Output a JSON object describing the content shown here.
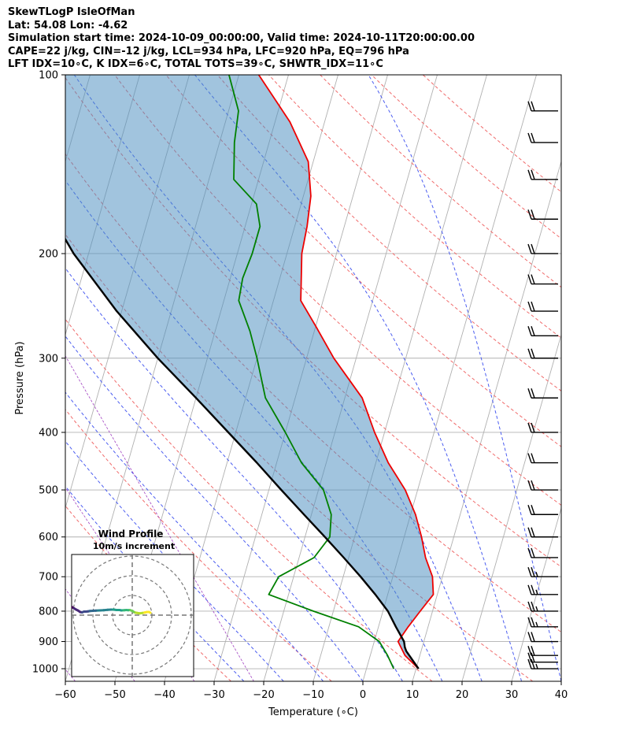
{
  "header": {
    "line1": "SkewTLogP IsleOfMan",
    "line2": "Lat: 54.08   Lon: -4.62",
    "line3": "Simulation start time: 2024-10-09_00:00:00, Valid time: 2024-10-11T20:00:00.00",
    "line4": "CAPE=22 j/kg, CIN=-12 j/kg, LCL=934 hPa, LFC=920 hPa, EQ=796 hPa",
    "line5": "LFT IDX=10∘C, K IDX=6∘C, TOTAL TOTS=39∘C, SHWTR_IDX=11∘C"
  },
  "chart_data": [
    {
      "type": "line",
      "title": "",
      "xlabel": "Temperature (∘C)",
      "ylabel": "Pressure (hPa)",
      "xlim": [
        -60,
        40
      ],
      "ylim": [
        1050,
        100
      ],
      "yscale": "log",
      "skew": true,
      "grid": true,
      "xticks": [
        "−60",
        "−50",
        "−40",
        "−30",
        "−20",
        "−10",
        "0",
        "10",
        "20",
        "30",
        "40"
      ],
      "yticks": [
        "1000",
        "900",
        "800",
        "700",
        "600",
        "500",
        "400",
        "300",
        "200",
        "100"
      ],
      "series": [
        {
          "name": "",
          "color": "#ee0000",
          "points": [
            [
              1000,
              10.5
            ],
            [
              950,
              7
            ],
            [
              900,
              4.8
            ],
            [
              850,
              6
            ],
            [
              800,
              7.5
            ],
            [
              750,
              9.2
            ],
            [
              700,
              8
            ],
            [
              650,
              5.5
            ],
            [
              600,
              3.5
            ],
            [
              550,
              1
            ],
            [
              500,
              -2.5
            ],
            [
              450,
              -7.5
            ],
            [
              400,
              -12
            ],
            [
              350,
              -16.5
            ],
            [
              300,
              -24.5
            ],
            [
              265,
              -30
            ],
            [
              240,
              -34.5
            ],
            [
              215,
              -36
            ],
            [
              200,
              -37
            ],
            [
              180,
              -37.5
            ],
            [
              160,
              -38.5
            ],
            [
              140,
              -41
            ],
            [
              120,
              -47
            ],
            [
              100,
              -56
            ]
          ]
        },
        {
          "name": "",
          "color": "#008000",
          "points": [
            [
              1000,
              5.5
            ],
            [
              950,
              3.5
            ],
            [
              900,
              1
            ],
            [
              850,
              -4
            ],
            [
              800,
              -14
            ],
            [
              750,
              -24
            ],
            [
              700,
              -23
            ],
            [
              650,
              -17
            ],
            [
              600,
              -15
            ],
            [
              550,
              -16
            ],
            [
              500,
              -19
            ],
            [
              450,
              -25
            ],
            [
              400,
              -30
            ],
            [
              350,
              -36
            ],
            [
              300,
              -40
            ],
            [
              270,
              -43
            ],
            [
              240,
              -47
            ],
            [
              220,
              -47.5
            ],
            [
              200,
              -47
            ],
            [
              180,
              -47
            ],
            [
              165,
              -49
            ],
            [
              150,
              -55
            ],
            [
              130,
              -57
            ],
            [
              115,
              -58
            ],
            [
              100,
              -62
            ]
          ]
        },
        {
          "name": "",
          "color": "#000000",
          "points": [
            [
              1000,
              10.5
            ],
            [
              934,
              7
            ],
            [
              920,
              6.5
            ],
            [
              900,
              6
            ],
            [
              850,
              3.5
            ],
            [
              800,
              1
            ],
            [
              750,
              -2.5
            ],
            [
              700,
              -6.5
            ],
            [
              650,
              -11
            ],
            [
              600,
              -16
            ],
            [
              550,
              -21.5
            ],
            [
              500,
              -27.5
            ],
            [
              450,
              -34
            ],
            [
              400,
              -41.5
            ],
            [
              350,
              -50
            ],
            [
              300,
              -60
            ],
            [
              250,
              -71
            ],
            [
              200,
              -83
            ],
            [
              150,
              -96
            ],
            [
              100,
              -110
            ]
          ]
        }
      ],
      "shading": {
        "color": "#4a8ec0",
        "between": "parcel and temperature"
      },
      "wind_barbs": [
        {
          "p": 1000,
          "spd": 15,
          "dir": 260
        },
        {
          "p": 975,
          "spd": 20,
          "dir": 265
        },
        {
          "p": 950,
          "spd": 20,
          "dir": 265
        },
        {
          "p": 900,
          "spd": 20,
          "dir": 265
        },
        {
          "p": 850,
          "spd": 15,
          "dir": 265
        },
        {
          "p": 800,
          "spd": 15,
          "dir": 270
        },
        {
          "p": 750,
          "spd": 15,
          "dir": 270
        },
        {
          "p": 700,
          "spd": 15,
          "dir": 270
        },
        {
          "p": 650,
          "spd": 20,
          "dir": 270
        },
        {
          "p": 600,
          "spd": 20,
          "dir": 270
        },
        {
          "p": 550,
          "spd": 20,
          "dir": 270
        },
        {
          "p": 500,
          "spd": 20,
          "dir": 270
        },
        {
          "p": 450,
          "spd": 20,
          "dir": 270
        },
        {
          "p": 400,
          "spd": 20,
          "dir": 270
        },
        {
          "p": 350,
          "spd": 20,
          "dir": 270
        },
        {
          "p": 300,
          "spd": 20,
          "dir": 270
        },
        {
          "p": 275,
          "spd": 20,
          "dir": 270
        },
        {
          "p": 250,
          "spd": 20,
          "dir": 270
        },
        {
          "p": 225,
          "spd": 20,
          "dir": 270
        },
        {
          "p": 200,
          "spd": 20,
          "dir": 270
        },
        {
          "p": 175,
          "spd": 20,
          "dir": 270
        },
        {
          "p": 150,
          "spd": 20,
          "dir": 270
        },
        {
          "p": 130,
          "spd": 20,
          "dir": 270
        },
        {
          "p": 115,
          "spd": 20,
          "dir": 270
        }
      ]
    },
    {
      "type": "scatter",
      "title": "Wind Profile",
      "subtitle": "10m/s increment",
      "rings": [
        10,
        20,
        30
      ],
      "points": [
        [
          9.2,
          1.2
        ],
        [
          8.5,
          1.6
        ],
        [
          7.5,
          1.6
        ],
        [
          6.3,
          1.3
        ],
        [
          5.2,
          1.1
        ],
        [
          3.8,
          0.9
        ],
        [
          2.5,
          1.1
        ],
        [
          1.5,
          1.3
        ],
        [
          0.8,
          1.6
        ],
        [
          0.3,
          2.0
        ],
        [
          -0.4,
          2.3
        ],
        [
          -1.2,
          2.6
        ],
        [
          -2,
          2.5
        ],
        [
          -3,
          2.6
        ],
        [
          -4,
          2.5
        ],
        [
          -5.5,
          2.4
        ],
        [
          -6.5,
          2.6
        ],
        [
          -8,
          2.6
        ],
        [
          -9.5,
          2.8
        ],
        [
          -10.8,
          2.8
        ],
        [
          -12.5,
          2.7
        ],
        [
          -14.5,
          2.5
        ],
        [
          -16.5,
          2.4
        ],
        [
          -18.5,
          2.3
        ],
        [
          -20,
          2.2
        ],
        [
          -21.5,
          2.1
        ],
        [
          -22.5,
          1.9
        ],
        [
          -23.5,
          1.8
        ],
        [
          -24.5,
          1.8
        ],
        [
          -25.5,
          1.4
        ],
        [
          -26.5,
          1.6
        ],
        [
          -27.5,
          2.3
        ],
        [
          -28.5,
          2.8
        ],
        [
          -29.5,
          3.4
        ],
        [
          -30.5,
          4
        ],
        [
          -31.5,
          4.6
        ],
        [
          -32,
          4.8
        ],
        [
          -32.5,
          4.5
        ]
      ]
    }
  ]
}
